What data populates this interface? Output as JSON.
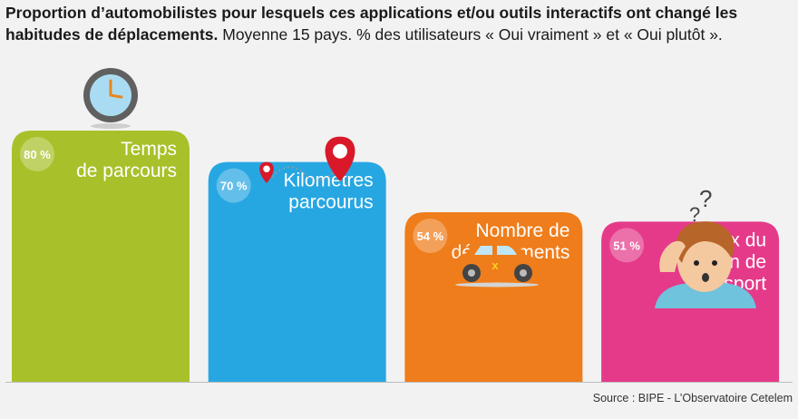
{
  "title": {
    "bold": "Proportion d’automobilistes pour lesquels ces applications et/ou outils interactifs ont changé les habitudes de déplacements.",
    "normal": "Moyenne 15 pays. % des utilisateurs « Oui vraiment » et « Oui plutôt »."
  },
  "source": "Source : BIPE - L’Observatoire Cetelem",
  "chart_data": {
    "type": "bar",
    "categories": [
      "Temps de parcours",
      "Kilomètres parcourus",
      "Nombre de déplacements",
      "Choix du moyen de transport"
    ],
    "category_lines": [
      [
        "Temps",
        "de parcours"
      ],
      [
        "Kilomètres",
        "parcourus"
      ],
      [
        "Nombre de",
        "déplacements"
      ],
      [
        "Choix du",
        "moyen de",
        "transport"
      ]
    ],
    "values": [
      80,
      70,
      54,
      51
    ],
    "value_labels": [
      "80 %",
      "70 %",
      "54 %",
      "51 %"
    ],
    "colors": [
      "#a8c12a",
      "#27a7e2",
      "#ef7d1b",
      "#e53a8a"
    ],
    "icons": [
      "clock-icon",
      "map-pin-route-icon",
      "car-icon",
      "confused-person-icon"
    ],
    "ylim": [
      0,
      80
    ]
  }
}
